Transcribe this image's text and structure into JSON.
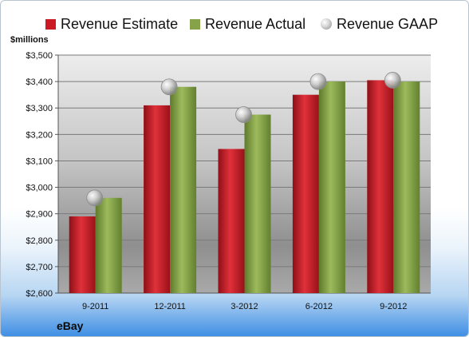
{
  "company": "eBay",
  "chart_data": {
    "type": "bar",
    "ylabel": "$millions",
    "categories": [
      "9-2011",
      "12-2011",
      "3-2012",
      "6-2012",
      "9-2012"
    ],
    "ylim": [
      2600,
      3500
    ],
    "yticks": [
      2600,
      2700,
      2800,
      2900,
      3000,
      3100,
      3200,
      3300,
      3400,
      3500
    ],
    "ytick_labels": [
      "$2,600",
      "$2,700",
      "$2,800",
      "$2,900",
      "$3,000",
      "$3,100",
      "$3,200",
      "$3,300",
      "$3,400",
      "$3,500"
    ],
    "grid": true,
    "legend_position": "top",
    "series": [
      {
        "name": "Revenue Estimate",
        "mark": "bar",
        "color": "#cc1a24",
        "values": [
          2890,
          3310,
          3145,
          3350,
          3405
        ]
      },
      {
        "name": "Revenue Actual",
        "mark": "bar",
        "color": "#86a34a",
        "values": [
          2960,
          3380,
          3275,
          3400,
          3400
        ]
      },
      {
        "name": "Revenue GAAP",
        "mark": "marker",
        "color": "#b5b5b5",
        "values": [
          2960,
          3380,
          3275,
          3400,
          3405
        ]
      }
    ]
  }
}
